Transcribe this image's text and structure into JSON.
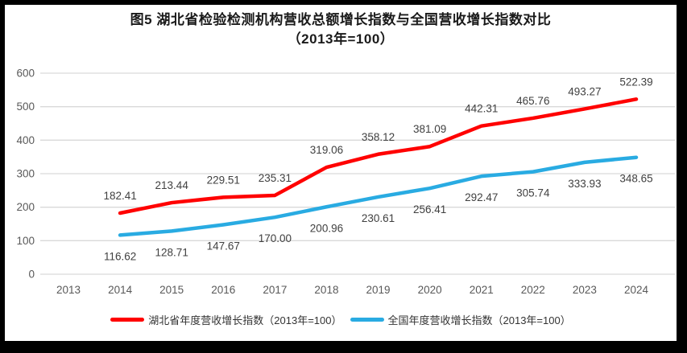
{
  "chart": {
    "title_line1": "图5 湖北省检验检测机构营收总额增长指数与全国营收增长指数对比",
    "title_line2": "（2013年=100）"
  },
  "chart_data": {
    "type": "line",
    "title": "图5 湖北省检验检测机构营收总额增长指数与全国营收增长指数对比（2013年=100）",
    "categories": [
      "2013",
      "2014",
      "2015",
      "2016",
      "2017",
      "2018",
      "2019",
      "2020",
      "2021",
      "2022",
      "2023",
      "2024"
    ],
    "series": [
      {
        "name": "湖北省年度营收增长指数（2013年=100）",
        "color": "#FF0000",
        "label_position": "above",
        "values": [
          null,
          182.41,
          213.44,
          229.51,
          235.31,
          319.06,
          358.12,
          381.09,
          442.31,
          465.76,
          493.27,
          522.39
        ]
      },
      {
        "name": "全国年度营收增长指数（2013年=100）",
        "color": "#29ABE2",
        "label_position": "below",
        "values": [
          null,
          116.62,
          128.71,
          147.67,
          170.0,
          200.96,
          230.61,
          256.41,
          292.47,
          305.74,
          333.93,
          348.65
        ]
      }
    ],
    "xlabel": "",
    "ylabel": "",
    "ylim": [
      0,
      600
    ],
    "yticks": [
      0,
      100,
      200,
      300,
      400,
      500,
      600
    ],
    "grid": true,
    "legend_position": "bottom",
    "data_label_decimals": 2,
    "colors": {
      "grid": "#D9D9D9",
      "axis_text": "#595959",
      "data_label_text": "#404040",
      "background": "#FFFFFF",
      "frame": "#000000"
    }
  }
}
